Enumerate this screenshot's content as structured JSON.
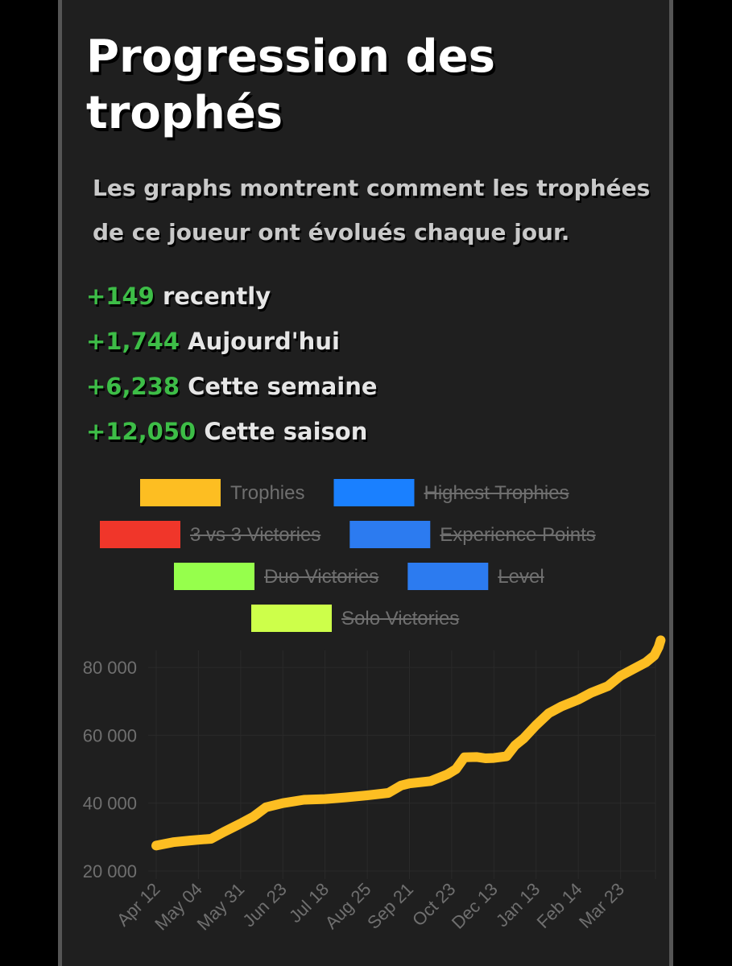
{
  "header": {
    "title": "Progression des trophés",
    "subtitle": "Les graphs montrent comment les trophées de ce joueur ont évolués chaque jour."
  },
  "stats": [
    {
      "value": "+149",
      "label": "recently"
    },
    {
      "value": "+1,744",
      "label": "Aujourd'hui"
    },
    {
      "value": "+6,238",
      "label": "Cette semaine"
    },
    {
      "value": "+12,050",
      "label": "Cette saison"
    }
  ],
  "colors": {
    "trophies": "#fdbe22",
    "highest_trophies": "#1a80ff",
    "three_vs_three": "#f0362a",
    "experience_points": "#2c7bf0",
    "duo_victories": "#96ff4c",
    "level": "#2c7bf0",
    "solo_victories": "#cdff4a",
    "positive": "#3dbd47"
  },
  "chart_data": {
    "type": "line",
    "legend": [
      {
        "name": "Trophies",
        "color": "#fdbe22",
        "hidden": false
      },
      {
        "name": "Highest Trophies",
        "color": "#1a80ff",
        "hidden": true
      },
      {
        "name": "3 vs 3 Victories",
        "color": "#f0362a",
        "hidden": true
      },
      {
        "name": "Experience Points",
        "color": "#2c7bf0",
        "hidden": true
      },
      {
        "name": "Duo Victories",
        "color": "#96ff4c",
        "hidden": true
      },
      {
        "name": "Level",
        "color": "#2c7bf0",
        "hidden": true
      },
      {
        "name": "Solo Victories",
        "color": "#cdff4a",
        "hidden": true
      }
    ],
    "legend_position": "top-center",
    "x_ticks": [
      "Apr 12",
      "May 04",
      "May 31",
      "Jun 23",
      "Jul 18",
      "Aug 25",
      "Sep 21",
      "Oct 23",
      "Dec 13",
      "Jan 13",
      "Feb 14",
      "Mar 23"
    ],
    "y_ticks": [
      "20 000",
      "40 000",
      "60 000",
      "80 000"
    ],
    "ylim": [
      20000,
      85000
    ],
    "grid": true,
    "series": [
      {
        "name": "Trophies",
        "color": "#fdbe22",
        "points": [
          [
            0,
            27500
          ],
          [
            0.4,
            28500
          ],
          [
            0.8,
            29000
          ],
          [
            1.0,
            29200
          ],
          [
            1.3,
            29500
          ],
          [
            1.6,
            31500
          ],
          [
            2.0,
            34000
          ],
          [
            2.3,
            36000
          ],
          [
            2.6,
            38800
          ],
          [
            3.0,
            40000
          ],
          [
            3.5,
            41000
          ],
          [
            4.0,
            41200
          ],
          [
            4.5,
            41700
          ],
          [
            5.0,
            42300
          ],
          [
            5.5,
            43000
          ],
          [
            5.8,
            45200
          ],
          [
            6.0,
            45800
          ],
          [
            6.5,
            46500
          ],
          [
            6.9,
            48500
          ],
          [
            7.1,
            50000
          ],
          [
            7.3,
            53500
          ],
          [
            7.6,
            53600
          ],
          [
            7.8,
            53200
          ],
          [
            8.0,
            53300
          ],
          [
            8.3,
            53800
          ],
          [
            8.5,
            57000
          ],
          [
            8.7,
            59000
          ],
          [
            9.0,
            63000
          ],
          [
            9.3,
            66500
          ],
          [
            9.6,
            68500
          ],
          [
            10.0,
            70500
          ],
          [
            10.3,
            72500
          ],
          [
            10.7,
            74500
          ],
          [
            11.0,
            77500
          ],
          [
            11.3,
            79500
          ],
          [
            11.6,
            81500
          ],
          [
            11.8,
            83500
          ],
          [
            11.9,
            86000
          ],
          [
            11.95,
            88000
          ]
        ]
      }
    ]
  }
}
